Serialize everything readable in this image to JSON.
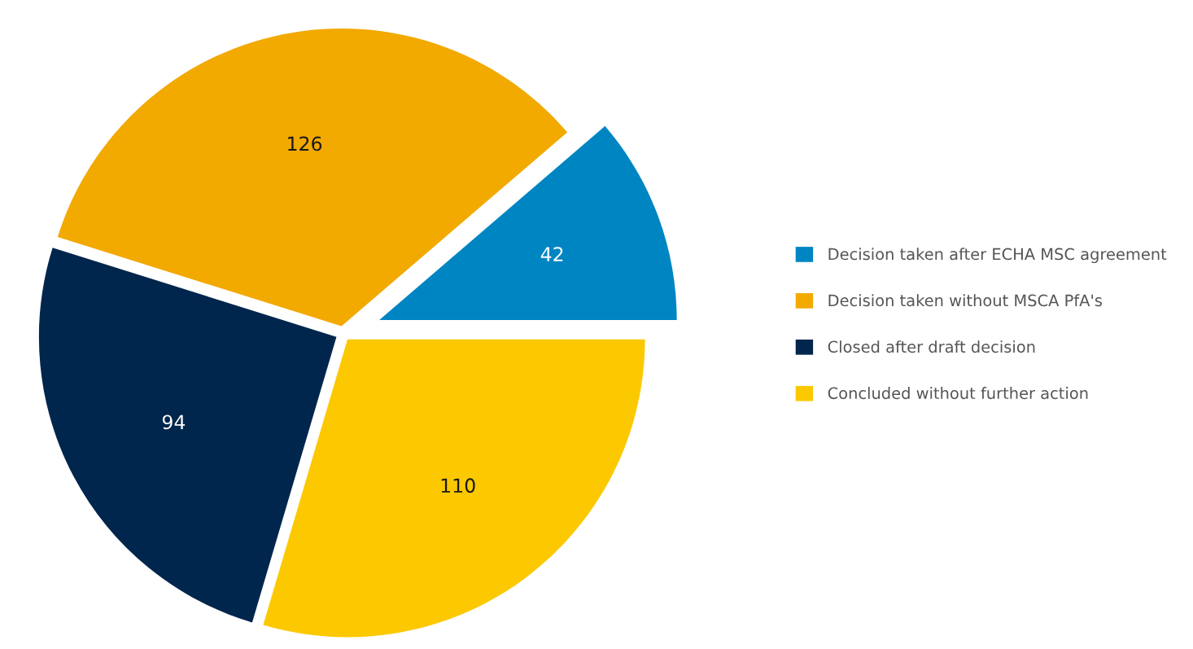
{
  "chart_data": {
    "type": "pie",
    "categories": [
      "Decision taken after ECHA MSC agreement",
      "Decision taken without MSCA PfA's",
      "Closed after draft decision",
      "Concluded without further action"
    ],
    "values": [
      42,
      126,
      94,
      110
    ],
    "colors": [
      "#0085c3",
      "#f2a900",
      "#00264d",
      "#fcc800"
    ],
    "data_labels": true,
    "legend": "right"
  }
}
